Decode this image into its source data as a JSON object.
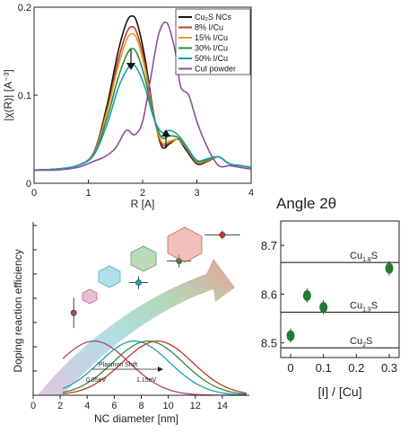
{
  "chart_data": [
    {
      "type": "line",
      "xlabel": "R [A]",
      "ylabel": "|χ(R)| [A⁻³]",
      "xlim": [
        0,
        4
      ],
      "ylim": [
        0,
        0.2
      ],
      "xticks": [
        "0",
        "1",
        "2",
        "3",
        "4"
      ],
      "yticks": [
        "0",
        "0.1",
        "0.2"
      ],
      "legend_position": "top-right",
      "series": [
        {
          "name": "Cu₂S NCs",
          "color": "#111111",
          "x": [
            0,
            0.4,
            0.8,
            1.1,
            1.35,
            1.55,
            1.7,
            1.8,
            1.9,
            2.05,
            2.2,
            2.35,
            2.5,
            2.65,
            2.8,
            3.0,
            3.2,
            3.4,
            3.6,
            3.8,
            4.0
          ],
          "y": [
            0.015,
            0.016,
            0.02,
            0.035,
            0.09,
            0.15,
            0.182,
            0.19,
            0.182,
            0.14,
            0.08,
            0.042,
            0.045,
            0.05,
            0.038,
            0.022,
            0.025,
            0.03,
            0.022,
            0.02,
            0.018
          ]
        },
        {
          "name": "8% I/Cu",
          "color": "#c0392b",
          "x": [
            0,
            0.4,
            0.8,
            1.1,
            1.35,
            1.55,
            1.7,
            1.8,
            1.9,
            2.05,
            2.2,
            2.35,
            2.5,
            2.65,
            2.8,
            3.0,
            3.2,
            3.4,
            3.6,
            3.8,
            4.0
          ],
          "y": [
            0.015,
            0.016,
            0.02,
            0.035,
            0.085,
            0.14,
            0.17,
            0.178,
            0.17,
            0.133,
            0.078,
            0.045,
            0.046,
            0.05,
            0.04,
            0.023,
            0.026,
            0.03,
            0.022,
            0.02,
            0.018
          ]
        },
        {
          "name": "15% I/Cu",
          "color": "#e6a020",
          "x": [
            0,
            0.4,
            0.8,
            1.1,
            1.35,
            1.55,
            1.7,
            1.8,
            1.9,
            2.05,
            2.2,
            2.35,
            2.5,
            2.65,
            2.8,
            3.0,
            3.2,
            3.4,
            3.6,
            3.8,
            4.0
          ],
          "y": [
            0.015,
            0.016,
            0.02,
            0.034,
            0.082,
            0.133,
            0.162,
            0.17,
            0.163,
            0.128,
            0.077,
            0.047,
            0.048,
            0.05,
            0.041,
            0.024,
            0.026,
            0.03,
            0.022,
            0.02,
            0.018
          ]
        },
        {
          "name": "30% I/Cu",
          "color": "#2e8b3a",
          "x": [
            0,
            0.4,
            0.8,
            1.1,
            1.35,
            1.55,
            1.7,
            1.8,
            1.9,
            2.05,
            2.2,
            2.35,
            2.5,
            2.65,
            2.8,
            3.0,
            3.2,
            3.4,
            3.6,
            3.8,
            4.0
          ],
          "y": [
            0.015,
            0.016,
            0.02,
            0.033,
            0.075,
            0.12,
            0.145,
            0.153,
            0.147,
            0.118,
            0.076,
            0.052,
            0.054,
            0.052,
            0.042,
            0.025,
            0.027,
            0.03,
            0.022,
            0.02,
            0.018
          ]
        },
        {
          "name": "50% I/Cu",
          "color": "#1aa0b0",
          "x": [
            0,
            0.4,
            0.8,
            1.1,
            1.35,
            1.55,
            1.7,
            1.8,
            1.9,
            2.05,
            2.2,
            2.35,
            2.5,
            2.65,
            2.8,
            3.0,
            3.2,
            3.4,
            3.6,
            3.8,
            4.0
          ],
          "y": [
            0.015,
            0.016,
            0.02,
            0.032,
            0.068,
            0.108,
            0.128,
            0.135,
            0.13,
            0.108,
            0.075,
            0.058,
            0.06,
            0.055,
            0.043,
            0.026,
            0.028,
            0.03,
            0.022,
            0.02,
            0.018
          ]
        },
        {
          "name": "CuI powder",
          "color": "#8e4ea0",
          "x": [
            0,
            0.4,
            0.8,
            1.1,
            1.3,
            1.5,
            1.7,
            1.85,
            2.0,
            2.15,
            2.3,
            2.45,
            2.6,
            2.7,
            2.85,
            3.0,
            3.2,
            3.4,
            3.6,
            3.8,
            4.0
          ],
          "y": [
            0.015,
            0.015,
            0.018,
            0.025,
            0.03,
            0.04,
            0.06,
            0.055,
            0.07,
            0.12,
            0.17,
            0.182,
            0.15,
            0.11,
            0.1,
            0.07,
            0.04,
            0.02,
            0.02,
            0.018,
            0.016
          ]
        }
      ],
      "annotations": [
        "down-arrow",
        "up-arrow"
      ]
    },
    {
      "type": "scatter",
      "ylabel": "Doping reaction efficiency",
      "xlabel": "NC diameter [nm]",
      "xlim": [
        0,
        16
      ],
      "xticks": [
        "0",
        "2",
        "4",
        "6",
        "8",
        "10",
        "12",
        "14"
      ],
      "points": [
        {
          "x": 3.0,
          "y": 0.38,
          "yerr": 0.07,
          "xerr": 0.2,
          "color": "#b0407a"
        },
        {
          "x": 7.8,
          "y": 0.52,
          "yerr": 0.03,
          "xerr": 0.7,
          "color": "#1aa0b0"
        },
        {
          "x": 10.8,
          "y": 0.62,
          "yerr": 0.03,
          "xerr": 0.9,
          "color": "#2e8b3a"
        },
        {
          "x": 14.0,
          "y": 0.74,
          "yerr": 0.02,
          "xerr": 1.3,
          "color": "#c0392b"
        }
      ],
      "annotations": {
        "plasmon_shift": "Plasmon Shift",
        "energy_left": "0.85eV",
        "energy_right": "1.15eV"
      },
      "curves": [
        {
          "color": "#b0407a",
          "center": 4.5
        },
        {
          "color": "#1aa0b0",
          "center": 7.5
        },
        {
          "color": "#2e8b3a",
          "center": 8.5
        },
        {
          "color": "#c0392b",
          "center": 9.2
        }
      ]
    },
    {
      "type": "scatter",
      "title": "Angle 2θ",
      "xlabel": "[I] / [Cu]",
      "xlim": [
        -0.03,
        0.33
      ],
      "ylim": [
        8.47,
        8.75
      ],
      "xticks": [
        "0",
        "0.1",
        "0.2",
        "0.3"
      ],
      "yticks": [
        "8.5",
        "8.6",
        "8.7"
      ],
      "reference_lines": [
        {
          "value": 8.665,
          "label": "Cu",
          "sub": "1.8",
          "tail": "S"
        },
        {
          "value": 8.563,
          "label": "Cu",
          "sub": "1.9",
          "tail": "S"
        },
        {
          "value": 8.49,
          "label": "Cu",
          "sub": "2",
          "tail": "S"
        }
      ],
      "points": [
        {
          "x": 0.0,
          "y": 8.515
        },
        {
          "x": 0.05,
          "y": 8.597
        },
        {
          "x": 0.1,
          "y": 8.573
        },
        {
          "x": 0.3,
          "y": 8.653
        }
      ],
      "point_color": "#1e7a34"
    }
  ]
}
